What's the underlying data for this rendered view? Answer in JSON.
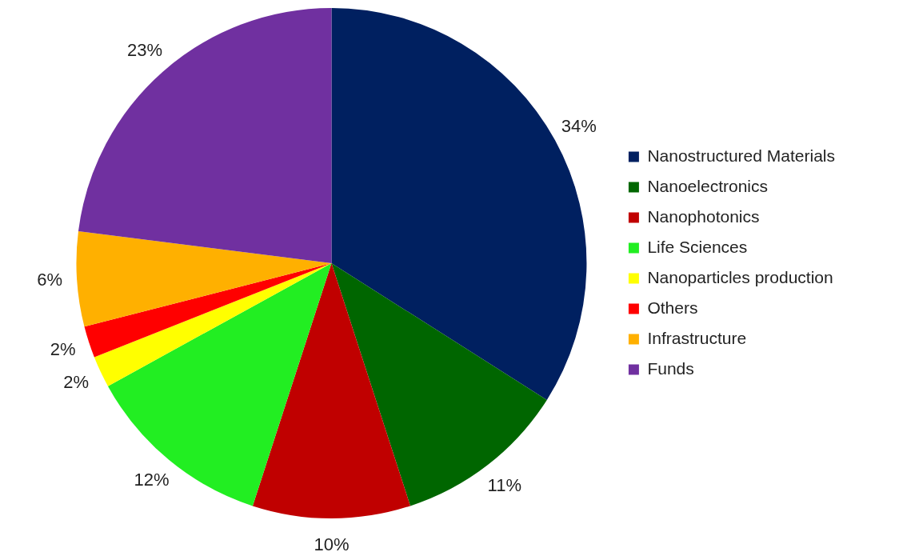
{
  "chart_data": {
    "type": "pie",
    "categories": [
      "Nanostructured Materials",
      "Nanoelectronics",
      "Nanophotonics",
      "Life Sciences",
      "Nanoparticles production",
      "Others",
      "Infrastructure",
      "Funds"
    ],
    "values": [
      34,
      11,
      10,
      12,
      2,
      2,
      6,
      23
    ],
    "value_labels": [
      "34%",
      "11%",
      "10%",
      "12%",
      "2%",
      "2%",
      "6%",
      "23%"
    ],
    "colors": [
      "#002060",
      "#006600",
      "#c00000",
      "#22ee22",
      "#ffff00",
      "#ff0000",
      "#ffb000",
      "#7030a0"
    ],
    "legend": "right"
  }
}
